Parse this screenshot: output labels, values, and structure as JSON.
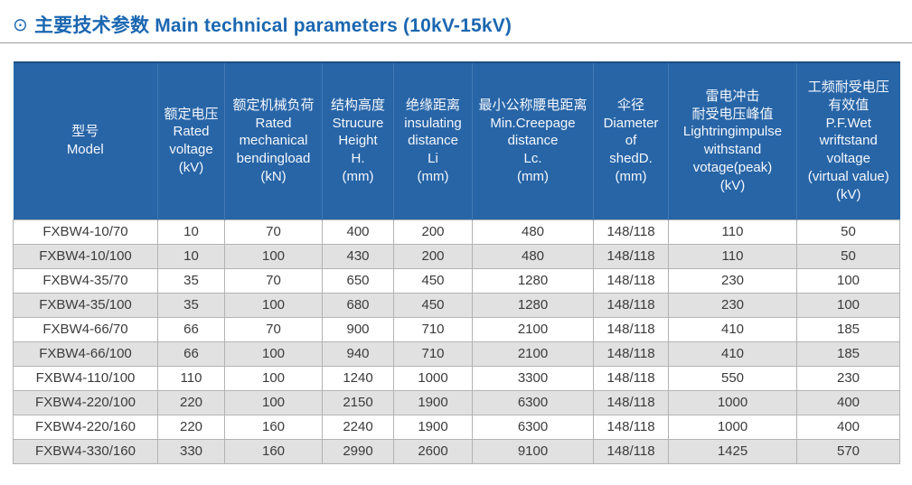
{
  "page_title": {
    "icon": "⊙",
    "text": "主要技术参数 Main technical parameters (10kV-15kV)"
  },
  "colors": {
    "title_blue": "#1b67b1",
    "header_background": "#2765a7",
    "header_top_border": "#1c4e84",
    "header_divider": "#4379b4",
    "row_stripe_gray": "#e1e1e1",
    "cell_border": "#b3b3b3",
    "body_text": "#3b3b3b"
  },
  "table": {
    "columns": [
      {
        "id": "model",
        "text": "型号\nModel"
      },
      {
        "id": "voltage",
        "text": "额定电压\nRated\nvoltage\n(kV)"
      },
      {
        "id": "bend",
        "text": "额定机械负荷\nRated\nmechanical\nbendingload\n(kN)"
      },
      {
        "id": "height",
        "text": "结构高度\nStrucure\nHeight\nH.\n(mm)"
      },
      {
        "id": "insul",
        "text": "绝缘距离\ninsulating\ndistance\nLi\n(mm)"
      },
      {
        "id": "creep",
        "text": "最小公称腰电距离\nMin.Creepage\ndistance\nLc.\n(mm)"
      },
      {
        "id": "shed",
        "text": "伞径\nDiameter\nof\nshedD.\n(mm)"
      },
      {
        "id": "impulse",
        "text": "雷电冲击\n耐受电压峰值\nLightringimpulse\nwithstand\nvotage(peak)\n(kV)"
      },
      {
        "id": "pf",
        "text": "工频耐受电压\n有效值\nP.F.Wet\nwriftstand\nvoltage\n(virtual value)\n(kV)"
      }
    ],
    "rows": [
      [
        "FXBW4-10/70",
        "10",
        "70",
        "400",
        "200",
        "480",
        "148/118",
        "110",
        "50"
      ],
      [
        "FXBW4-10/100",
        "10",
        "100",
        "430",
        "200",
        "480",
        "148/118",
        "110",
        "50"
      ],
      [
        "FXBW4-35/70",
        "35",
        "70",
        "650",
        "450",
        "1280",
        "148/118",
        "230",
        "100"
      ],
      [
        "FXBW4-35/100",
        "35",
        "100",
        "680",
        "450",
        "1280",
        "148/118",
        "230",
        "100"
      ],
      [
        "FXBW4-66/70",
        "66",
        "70",
        "900",
        "710",
        "2100",
        "148/118",
        "410",
        "185"
      ],
      [
        "FXBW4-66/100",
        "66",
        "100",
        "940",
        "710",
        "2100",
        "148/118",
        "410",
        "185"
      ],
      [
        "FXBW4-110/100",
        "110",
        "100",
        "1240",
        "1000",
        "3300",
        "148/118",
        "550",
        "230"
      ],
      [
        "FXBW4-220/100",
        "220",
        "100",
        "2150",
        "1900",
        "6300",
        "148/118",
        "1000",
        "400"
      ],
      [
        "FXBW4-220/160",
        "220",
        "160",
        "2240",
        "1900",
        "6300",
        "148/118",
        "1000",
        "400"
      ],
      [
        "FXBW4-330/160",
        "330",
        "160",
        "2990",
        "2600",
        "9100",
        "148/118",
        "1425",
        "570"
      ]
    ]
  }
}
